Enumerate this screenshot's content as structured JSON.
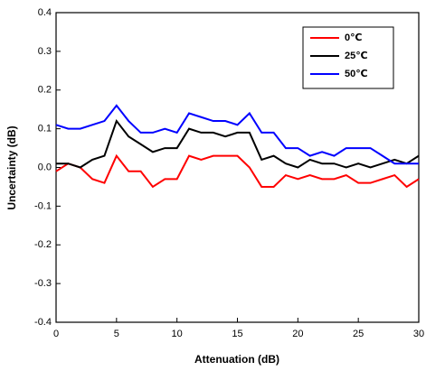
{
  "chart_data": {
    "type": "line",
    "x_label": "Attenuation (dB)",
    "y_label": "Uncertainty (dB)",
    "x": [
      0,
      1,
      2,
      3,
      4,
      5,
      6,
      7,
      8,
      9,
      10,
      11,
      12,
      13,
      14,
      15,
      16,
      17,
      18,
      19,
      20,
      21,
      22,
      23,
      24,
      25,
      26,
      27,
      28,
      29,
      30
    ],
    "series": [
      {
        "name": "0℃",
        "color": "#ff0000",
        "values": [
          -0.01,
          0.01,
          0,
          -0.03,
          -0.04,
          0.03,
          -0.01,
          -0.01,
          -0.05,
          -0.03,
          -0.03,
          0.03,
          0.02,
          0.03,
          0.03,
          0.03,
          0,
          -0.05,
          -0.05,
          -0.02,
          -0.03,
          -0.02,
          -0.03,
          -0.03,
          -0.02,
          -0.04,
          -0.04,
          -0.03,
          -0.02,
          -0.05,
          -0.03
        ]
      },
      {
        "name": "25℃",
        "color": "#000000",
        "values": [
          0.01,
          0.01,
          0,
          0.02,
          0.03,
          0.12,
          0.08,
          0.06,
          0.04,
          0.05,
          0.05,
          0.1,
          0.09,
          0.09,
          0.08,
          0.09,
          0.09,
          0.02,
          0.03,
          0.01,
          0,
          0.02,
          0.01,
          0.01,
          0,
          0.01,
          0,
          0.01,
          0.02,
          0.01,
          0.03
        ]
      },
      {
        "name": "50℃",
        "color": "#0000ff",
        "values": [
          0.11,
          0.1,
          0.1,
          0.11,
          0.12,
          0.16,
          0.12,
          0.09,
          0.09,
          0.1,
          0.09,
          0.14,
          0.13,
          0.12,
          0.12,
          0.11,
          0.14,
          0.09,
          0.09,
          0.05,
          0.05,
          0.03,
          0.04,
          0.03,
          0.05,
          0.05,
          0.05,
          0.03,
          0.01,
          0.01,
          0.01
        ]
      }
    ],
    "xlim": [
      0,
      30
    ],
    "xticks": [
      0,
      5,
      10,
      15,
      20,
      25,
      30
    ],
    "ylim": [
      -0.4,
      0.4
    ],
    "yticks": [
      -0.4,
      -0.3,
      -0.2,
      -0.1,
      {
        "value": 0,
        "label": "0.0"
      },
      0.1,
      0.2,
      0.3,
      0.4
    ],
    "legend": "upper right"
  }
}
